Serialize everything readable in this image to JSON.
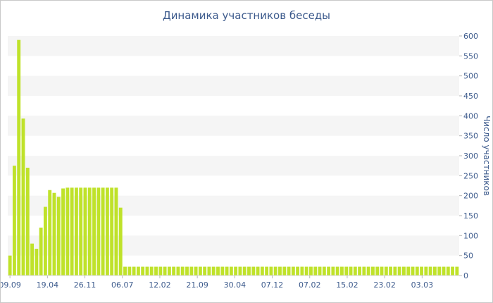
{
  "chart_data": {
    "type": "bar",
    "title": "Динамика участников беседы",
    "ylabel": "Число участников",
    "xlabel": "",
    "ylim": [
      0,
      600
    ],
    "y_ticks": [
      "0",
      "50",
      "100",
      "150",
      "200",
      "250",
      "300",
      "350",
      "400",
      "450",
      "500",
      "550",
      "600"
    ],
    "x_tick_labels": [
      "09.09",
      "19.04",
      "26.11",
      "06.07",
      "12.02",
      "21.09",
      "30.04",
      "07.12",
      "07.02",
      "15.02",
      "23.02",
      "03.03"
    ],
    "bar_color": "#bfe22a",
    "band_color": "#f5f5f5",
    "grid": true,
    "values": [
      50,
      275,
      590,
      393,
      270,
      80,
      67,
      120,
      172,
      214,
      207,
      197,
      218,
      220,
      220,
      220,
      220,
      220,
      220,
      220,
      220,
      220,
      220,
      220,
      220,
      170,
      22,
      22,
      22,
      22,
      22,
      22,
      22,
      22,
      22,
      22,
      22,
      22,
      22,
      22,
      22,
      22,
      22,
      22,
      22,
      22,
      22,
      22,
      22,
      22,
      22,
      22,
      22,
      22,
      22,
      22,
      22,
      22,
      22,
      22,
      22,
      22,
      22,
      22,
      22,
      22,
      22,
      22,
      22,
      22,
      22,
      22,
      22,
      22,
      22,
      22,
      22,
      22,
      22,
      22,
      22,
      22,
      22,
      22,
      22,
      22,
      22,
      22,
      22,
      22,
      22,
      22,
      22,
      22,
      22,
      22,
      22,
      22,
      22,
      22,
      22,
      22
    ]
  }
}
